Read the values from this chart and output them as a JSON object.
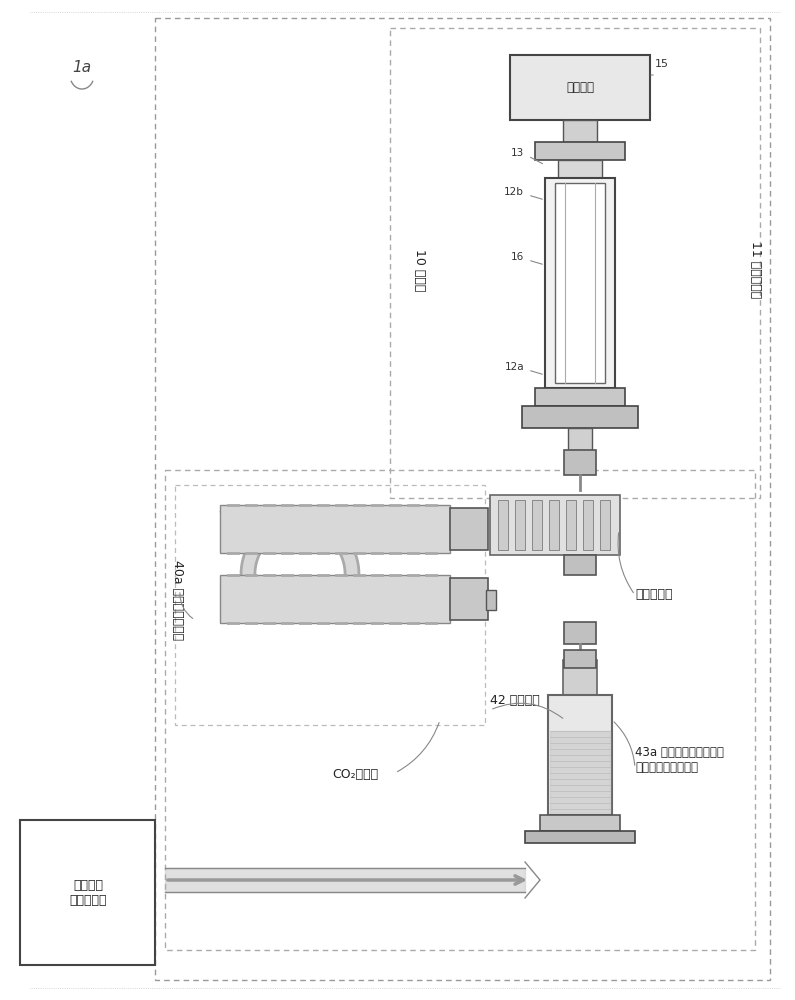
{
  "bg_color": "#ffffff",
  "colors": {
    "outer_border": "#999999",
    "dashed_box": "#aaaaaa",
    "solid_box": "#444444",
    "component_dark": "#555555",
    "component_mid": "#888888",
    "component_light": "#cccccc",
    "component_fill": "#d8d8d8",
    "component_fill2": "#e0e0e0",
    "text": "#222222",
    "arrow": "#777777"
  },
  "labels": {
    "fig_label": "1a",
    "spectro_label": "10 分光仪",
    "resonator_label": "11 光学共振器",
    "co2_gen_label": "40a 二氧化碳生成器",
    "co2_collect_label": "CO₂收集柱",
    "combust_label": "42 燃烧单元",
    "isotope_label": "43a 二氧化碳同位素纯化\n（收集＆分离）单元",
    "pelletier_label": "珀耳帖元件",
    "sample_label": "经预处理\n的生物样品",
    "detector_label": "光检测器"
  },
  "numbers": {
    "n15": "15",
    "n13": "13",
    "n12b": "12b",
    "n16": "16",
    "n12a": "12a"
  }
}
